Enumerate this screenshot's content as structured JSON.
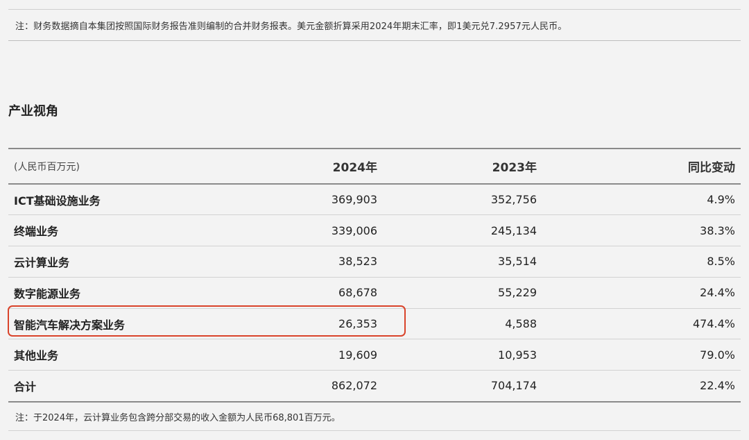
{
  "notes": {
    "top": "注：财务数据摘自本集团按照国际财务报告准则编制的合并财务报表。美元金额折算采用2024年期末汇率，即1美元兑7.2957元人民币。",
    "bottom": "注：于2024年，云计算业务包含跨分部交易的收入金额为人民币68,801百万元。"
  },
  "section": {
    "title": "产业视角"
  },
  "table": {
    "headers": [
      "(人民币百万元)",
      "2024年",
      "2023年",
      "同比变动"
    ],
    "rows": [
      [
        "ICT基础设施业务",
        "369,903",
        "352,756",
        "4.9%"
      ],
      [
        "终端业务",
        "339,006",
        "245,134",
        "38.3%"
      ],
      [
        "云计算业务",
        "38,523",
        "35,514",
        "8.5%"
      ],
      [
        "数字能源业务",
        "68,678",
        "55,229",
        "24.4%"
      ],
      [
        "智能汽车解决方案业务",
        "26,353",
        "4,588",
        "474.4%"
      ],
      [
        "其他业务",
        "19,609",
        "10,953",
        "79.0%"
      ],
      [
        "合计",
        "862,072",
        "704,174",
        "22.4%"
      ]
    ]
  },
  "highlight": {
    "color": "#d9432a",
    "row": "智能汽车解决方案业务"
  }
}
